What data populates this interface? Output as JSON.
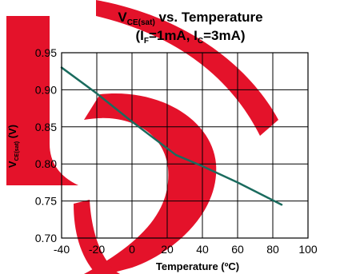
{
  "colors": {
    "series": "#1a6b5e",
    "watermark": "#e4122a"
  },
  "chart_data": {
    "type": "line",
    "title": {
      "line1_main": "V",
      "line1_sub": "CE(sat)",
      "line1_rest": " vs. Temperature",
      "line2_a": "(I",
      "line2_a_sub": "F",
      "line2_b": "=1mA, I",
      "line2_b_sub": "C",
      "line2_c": "=3mA)"
    },
    "xlabel": "Temperature (ºC)",
    "ylabel": {
      "main": "V",
      "sub": "CE(sat)",
      "unit": " (V)"
    },
    "xlim": [
      -40,
      100
    ],
    "ylim": [
      0.7,
      0.95
    ],
    "x_ticks": [
      "-40",
      "-20",
      "0",
      "20",
      "40",
      "60",
      "80",
      "100"
    ],
    "y_ticks": [
      "0.95",
      "0.90",
      "0.85",
      "0.80",
      "0.75",
      "0.70"
    ],
    "grid": true,
    "series": [
      {
        "x": [
          -40,
          -20,
          0,
          25,
          40,
          60,
          85
        ],
        "values": [
          0.93,
          0.895,
          0.857,
          0.812,
          0.797,
          0.775,
          0.745
        ]
      }
    ]
  }
}
